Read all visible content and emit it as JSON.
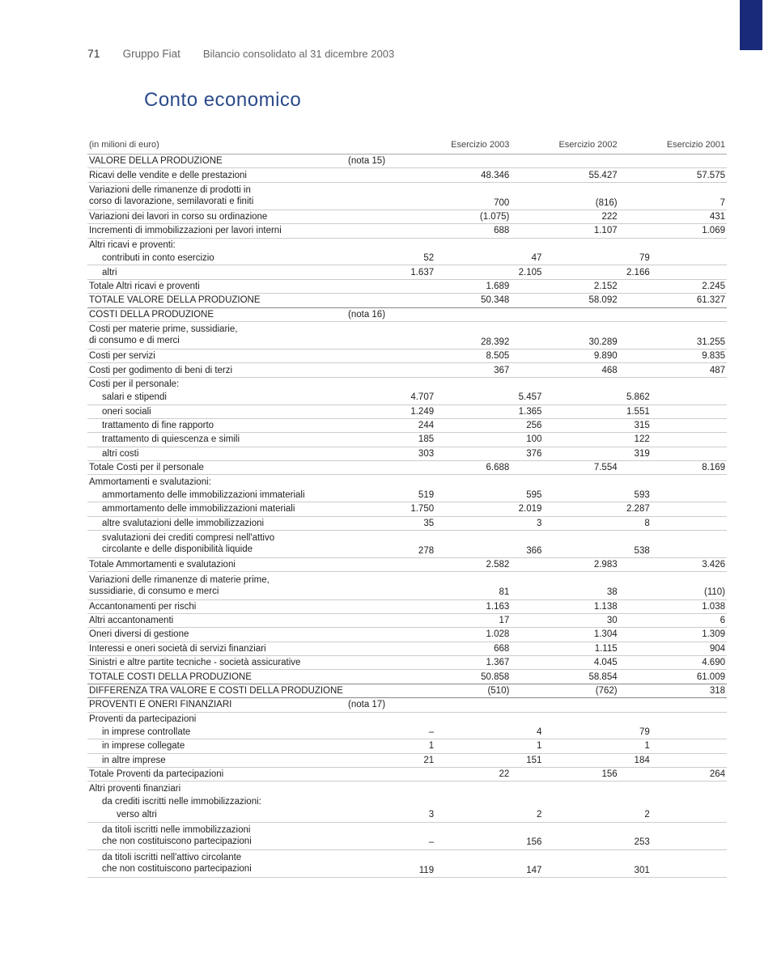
{
  "page_number": "71",
  "company": "Gruppo Fiat",
  "doc_title": "Bilancio consolidato al 31 dicembre 2003",
  "section_title": "Conto economico",
  "headers": {
    "unit": "(in milioni di euro)",
    "c1": "Esercizio 2003",
    "c2": "Esercizio 2002",
    "c3": "Esercizio 2001"
  },
  "rows": [
    {
      "label": "VALORE DELLA PRODUZIONE",
      "nota": "(nota 15)",
      "caps": true,
      "bold": true
    },
    {
      "label": "Ricavi delle vendite e delle prestazioni",
      "v": [
        "48.346",
        "55.427",
        "57.575"
      ]
    },
    {
      "label": "Variazioni delle rimanenze di prodotti in\ncorso di lavorazione, semilavorati e finiti",
      "v": [
        "700",
        "(816)",
        "7"
      ],
      "multi": true
    },
    {
      "label": "Variazioni dei lavori in corso su ordinazione",
      "v": [
        "(1.075)",
        "222",
        "431"
      ]
    },
    {
      "label": "Incrementi di immobilizzazioni per lavori interni",
      "v": [
        "688",
        "1.107",
        "1.069"
      ]
    },
    {
      "label": "Altri ricavi e proventi:",
      "noborder": true
    },
    {
      "label": "contributi in conto esercizio",
      "indent": 1,
      "v": [
        "52",
        "47",
        "79"
      ],
      "inner": true
    },
    {
      "label": "altri",
      "indent": 1,
      "v": [
        "1.637",
        "2.105",
        "2.166"
      ],
      "inner": true
    },
    {
      "label": "Totale Altri ricavi e proventi",
      "v": [
        "1.689",
        "2.152",
        "2.245"
      ]
    },
    {
      "label": "TOTALE VALORE DELLA PRODUZIONE",
      "caps": true,
      "bold": true,
      "v": [
        "50.348",
        "58.092",
        "61.327"
      ],
      "section": true
    },
    {
      "label": "COSTI DELLA PRODUZIONE",
      "nota": "(nota 16)",
      "caps": true,
      "bold": true
    },
    {
      "label": "Costi per materie prime, sussidiarie,\ndi consumo e di merci",
      "v": [
        "28.392",
        "30.289",
        "31.255"
      ],
      "multi": true
    },
    {
      "label": "Costi per servizi",
      "v": [
        "8.505",
        "9.890",
        "9.835"
      ]
    },
    {
      "label": "Costi per godimento di beni di terzi",
      "v": [
        "367",
        "468",
        "487"
      ]
    },
    {
      "label": "Costi per il personale:",
      "noborder": true
    },
    {
      "label": "salari e stipendi",
      "indent": 1,
      "v": [
        "4.707",
        "5.457",
        "5.862"
      ],
      "inner": true
    },
    {
      "label": "oneri sociali",
      "indent": 1,
      "v": [
        "1.249",
        "1.365",
        "1.551"
      ],
      "inner": true
    },
    {
      "label": "trattamento di fine rapporto",
      "indent": 1,
      "v": [
        "244",
        "256",
        "315"
      ],
      "inner": true
    },
    {
      "label": "trattamento di quiescenza e simili",
      "indent": 1,
      "v": [
        "185",
        "100",
        "122"
      ],
      "inner": true
    },
    {
      "label": "altri costi",
      "indent": 1,
      "v": [
        "303",
        "376",
        "319"
      ],
      "inner": true
    },
    {
      "label": "Totale Costi per il personale",
      "v": [
        "6.688",
        "7.554",
        "8.169"
      ]
    },
    {
      "label": "Ammortamenti e svalutazioni:",
      "noborder": true
    },
    {
      "label": "ammortamento delle immobilizzazioni immateriali",
      "indent": 1,
      "v": [
        "519",
        "595",
        "593"
      ],
      "inner": true
    },
    {
      "label": "ammortamento delle immobilizzazioni materiali",
      "indent": 1,
      "v": [
        "1.750",
        "2.019",
        "2.287"
      ],
      "inner": true
    },
    {
      "label": "altre svalutazioni delle immobilizzazioni",
      "indent": 1,
      "v": [
        "35",
        "3",
        "8"
      ],
      "inner": true
    },
    {
      "label": "svalutazioni dei crediti compresi nell'attivo\ncircolante e delle disponibilità liquide",
      "indent": 1,
      "v": [
        "278",
        "366",
        "538"
      ],
      "inner": true,
      "multi": true
    },
    {
      "label": "Totale Ammortamenti e svalutazioni",
      "v": [
        "2.582",
        "2.983",
        "3.426"
      ]
    },
    {
      "label": "Variazioni delle rimanenze di materie prime,\nsussidiarie, di consumo e merci",
      "v": [
        "81",
        "38",
        "(110)"
      ],
      "multi": true
    },
    {
      "label": "Accantonamenti per rischi",
      "v": [
        "1.163",
        "1.138",
        "1.038"
      ]
    },
    {
      "label": "Altri accantonamenti",
      "v": [
        "17",
        "30",
        "6"
      ]
    },
    {
      "label": "Oneri diversi di gestione",
      "v": [
        "1.028",
        "1.304",
        "1.309"
      ]
    },
    {
      "label": "Interessi e oneri società di servizi finanziari",
      "v": [
        "668",
        "1.115",
        "904"
      ]
    },
    {
      "label": "Sinistri e altre partite tecniche - società assicurative",
      "v": [
        "1.367",
        "4.045",
        "4.690"
      ]
    },
    {
      "label": "TOTALE COSTI DELLA PRODUZIONE",
      "caps": true,
      "bold": true,
      "v": [
        "50.858",
        "58.854",
        "61.009"
      ],
      "section": true
    },
    {
      "label": "DIFFERENZA TRA VALORE E COSTI DELLA PRODUZIONE",
      "caps": true,
      "bold": true,
      "v": [
        "(510)",
        "(762)",
        "318"
      ],
      "section": true
    },
    {
      "label": "PROVENTI E ONERI FINANZIARI",
      "nota": "(nota 17)",
      "caps": true,
      "bold": true
    },
    {
      "label": "Proventi da partecipazioni",
      "noborder": true
    },
    {
      "label": "in imprese controllate",
      "indent": 1,
      "v": [
        "–",
        "4",
        "79"
      ],
      "inner": true
    },
    {
      "label": "in imprese collegate",
      "indent": 1,
      "v": [
        "1",
        "1",
        "1"
      ],
      "inner": true
    },
    {
      "label": "in altre imprese",
      "indent": 1,
      "v": [
        "21",
        "151",
        "184"
      ],
      "inner": true
    },
    {
      "label": "Totale Proventi da partecipazioni",
      "v": [
        "22",
        "156",
        "264"
      ]
    },
    {
      "label": "Altri proventi finanziari",
      "noborder": true
    },
    {
      "label": "da crediti iscritti nelle immobilizzazioni:",
      "indent": 1,
      "noborder": true
    },
    {
      "label": "verso altri",
      "indent": 2,
      "v": [
        "3",
        "2",
        "2"
      ],
      "inner": true
    },
    {
      "label": "da titoli iscritti nelle immobilizzazioni\nche non costituiscono partecipazioni",
      "indent": 1,
      "v": [
        "–",
        "156",
        "253"
      ],
      "inner": true,
      "multi": true
    },
    {
      "label": "da titoli iscritti nell'attivo circolante\nche non costituiscono partecipazioni",
      "indent": 1,
      "v": [
        "119",
        "147",
        "301"
      ],
      "inner": true,
      "multi": true
    }
  ]
}
